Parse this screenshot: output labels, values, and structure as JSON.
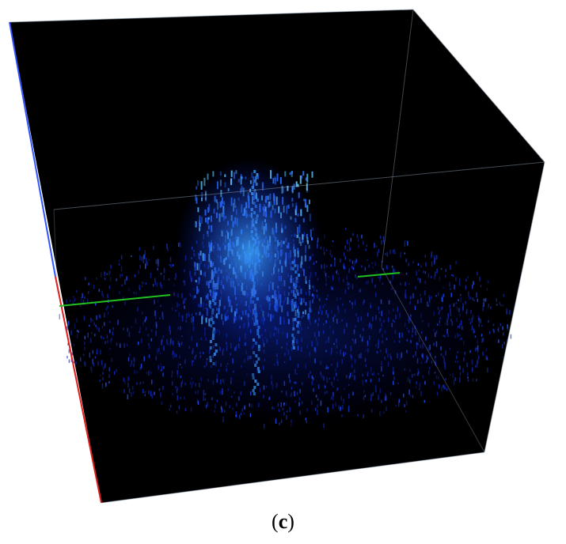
{
  "caption": {
    "prefix": "(",
    "label": "c",
    "suffix": ")"
  }
}
